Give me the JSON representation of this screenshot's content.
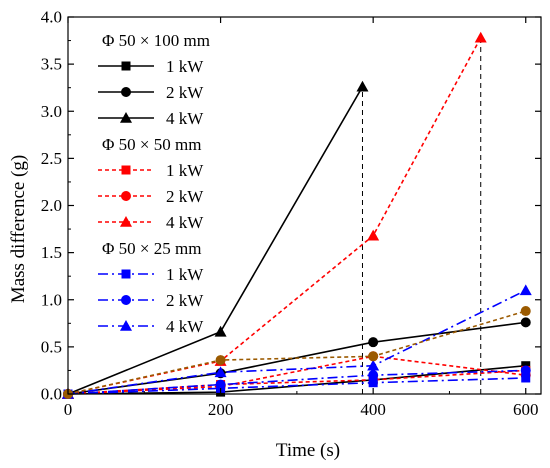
{
  "chart_data": {
    "type": "line",
    "xlabel": "Time (s)",
    "ylabel": "Mass difference (g)",
    "xlim": [
      0,
      620
    ],
    "ylim": [
      0,
      4.0
    ],
    "xticks": [
      0,
      200,
      400,
      600
    ],
    "xtick_labels": [
      "0",
      "200",
      "400",
      "600"
    ],
    "yticks": [
      0,
      0.5,
      1.0,
      1.5,
      2.0,
      2.5,
      3.0,
      3.5,
      4.0
    ],
    "ytick_labels": [
      "0.0",
      "0.5",
      "1.0",
      "1.5",
      "2.0",
      "2.5",
      "3.0",
      "3.5",
      "4.0"
    ],
    "grid": false,
    "legend_position": "top-left",
    "legend_groups": [
      {
        "title": "Φ 50 × 100 mm",
        "series": [
          0,
          1,
          2
        ]
      },
      {
        "title": "Φ 50 × 50 mm",
        "series": [
          3,
          4,
          5
        ]
      },
      {
        "title": "Φ 50 × 25 mm",
        "series": [
          6,
          7,
          8
        ]
      }
    ],
    "series": [
      {
        "name": "1 kW",
        "group": "Φ 50 × 100 mm",
        "color": "#000000",
        "dash": "solid",
        "marker": "square",
        "x": [
          0,
          200,
          400,
          600
        ],
        "y": [
          0,
          0.02,
          0.15,
          0.3
        ]
      },
      {
        "name": "2 kW",
        "group": "Φ 50 × 100 mm",
        "color": "#000000",
        "dash": "solid",
        "marker": "circle",
        "x": [
          0,
          200,
          400,
          600
        ],
        "y": [
          0,
          0.22,
          0.55,
          0.76
        ]
      },
      {
        "name": "4 kW",
        "group": "Φ 50 × 100 mm",
        "color": "#000000",
        "dash": "solid",
        "marker": "triangle",
        "x": [
          0,
          200,
          386
        ],
        "y": [
          0,
          0.66,
          3.26
        ]
      },
      {
        "name": "1 kW",
        "group": "Φ 50 × 50 mm",
        "color": "#ff0000",
        "dash": "dot",
        "marker": "square",
        "x": [
          0,
          200,
          400,
          600
        ],
        "y": [
          0,
          0.1,
          0.15,
          0.25
        ]
      },
      {
        "name": "2 kW",
        "group": "Φ 50 × 50 mm",
        "color": "#ff0000",
        "dash": "dot",
        "marker": "circle",
        "x": [
          0,
          200,
          400,
          600
        ],
        "y": [
          0,
          0.08,
          0.4,
          0.2
        ]
      },
      {
        "name": "4 kW",
        "group": "Φ 50 × 50 mm",
        "color": "#ff0000",
        "dash": "dot",
        "marker": "triangle",
        "x": [
          0,
          200,
          400,
          541
        ],
        "y": [
          0,
          0.35,
          1.68,
          3.78
        ]
      },
      {
        "name": "1 kW",
        "group": "Φ 50 × 25 mm",
        "color": "#0000ff",
        "dash": "dashdot",
        "marker": "square",
        "x": [
          0,
          200,
          400,
          600
        ],
        "y": [
          0,
          0.06,
          0.12,
          0.17
        ]
      },
      {
        "name": "2 kW",
        "group": "Φ 50 × 25 mm",
        "color": "#0000ff",
        "dash": "dashdot",
        "marker": "circle",
        "x": [
          0,
          200,
          400,
          600
        ],
        "y": [
          0,
          0.1,
          0.2,
          0.25
        ]
      },
      {
        "name": "4 kW",
        "group": "Φ 50 × 25 mm",
        "color": "#0000ff",
        "dash": "dashdot",
        "marker": "triangle",
        "x": [
          0,
          200,
          400,
          600
        ],
        "y": [
          0,
          0.23,
          0.3,
          1.1
        ]
      },
      {
        "name": "",
        "color": "#9b5a00",
        "dash": "dot",
        "marker": "circle",
        "x": [
          0,
          200,
          400,
          600
        ],
        "y": [
          0,
          0.36,
          0.4,
          0.88
        ]
      }
    ],
    "reference_lines": [
      {
        "x": 386,
        "y_from": 0,
        "y_to": 3.26,
        "color": "#000000",
        "dash": "dash"
      },
      {
        "x": 541,
        "y_from": 0,
        "y_to": 3.78,
        "color": "#000000",
        "dash": "dash"
      }
    ]
  }
}
